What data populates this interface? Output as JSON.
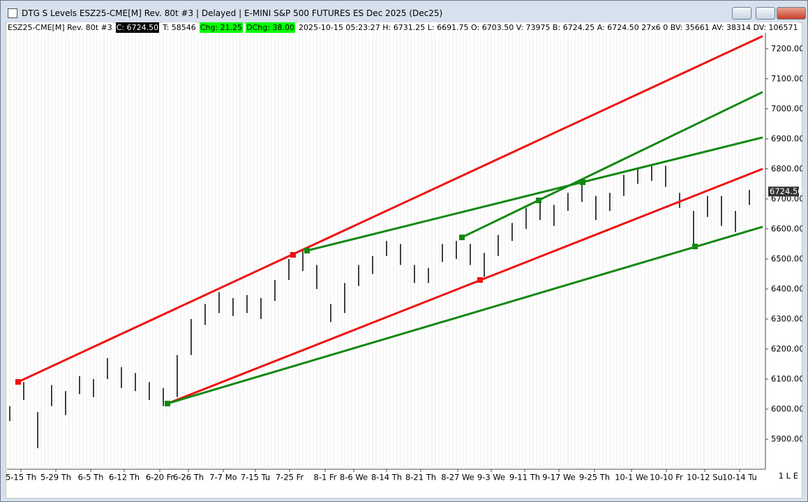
{
  "window": {
    "title": "DTG S Levels ESZ25-CME[M]  Rev. 80t #3 | Delayed | E-MINI S&P 500 FUTURES ES Dec 2025 (Dec25)"
  },
  "info_bar": {
    "items": [
      {
        "text": "ESZ25-CME[M]  Rev. 80t #3",
        "bg": "#ffffff",
        "color": "#000000"
      },
      {
        "text": "C: 6724.50",
        "bg": "#000000",
        "color": "#ffffff"
      },
      {
        "text": "T: 58546",
        "bg": "#ffffff",
        "color": "#000000"
      },
      {
        "text": "Chg: 21.25",
        "bg": "#00ff00",
        "color": "#000000"
      },
      {
        "text": "DChg: 38.00",
        "bg": "#00ff00",
        "color": "#000000"
      },
      {
        "text": "2025-10-15 05:23:27 H: 6731.25 L: 6691.75 O: 6703.50 V: 73975 B: 6724.25 A: 6724.50 27x6 0 BV: 35661 AV: 38314 DV: 106571",
        "bg": "#ffffff",
        "color": "#000000"
      }
    ]
  },
  "status": "1 L E",
  "chart_data": {
    "type": "range-bar",
    "categories": [
      "5-15 Th",
      "5-29 Th",
      "6-5 Th",
      "6-12 Th",
      "6-20 Fr",
      "6-26 Th",
      "7-7 Mo",
      "7-15 Tu",
      "7-25 Fr",
      "8-1 Fr",
      "8-6 We",
      "8-14 Th",
      "8-21 Th",
      "8-27 We",
      "9-3 We",
      "9-11 Th",
      "9-17 We",
      "9-25 Th",
      "10-1 We",
      "10-10 Fr",
      "10-12 Su",
      "10-14 Tu"
    ],
    "high": [
      6010,
      6090,
      5990,
      6080,
      6060,
      6110,
      6100,
      6170,
      6140,
      6120,
      6090,
      6070,
      6180,
      6300,
      6350,
      6390,
      6370,
      6380,
      6370,
      6430,
      6500,
      6530,
      6480,
      6350,
      6420,
      6480,
      6510,
      6560,
      6550,
      6480,
      6470,
      6550,
      6560,
      6550,
      6520,
      6580,
      6620,
      6670,
      6700,
      6680,
      6720,
      6760,
      6710,
      6720,
      6780,
      6800,
      6810,
      6810,
      6720,
      6660,
      6710,
      6710,
      6660,
      6730
    ],
    "low": [
      5960,
      6030,
      5870,
      6010,
      5980,
      6050,
      6040,
      6100,
      6070,
      6060,
      6030,
      6010,
      6040,
      6180,
      6280,
      6320,
      6310,
      6320,
      6300,
      6360,
      6430,
      6460,
      6400,
      6290,
      6320,
      6410,
      6450,
      6510,
      6480,
      6420,
      6420,
      6490,
      6500,
      6480,
      6440,
      6510,
      6560,
      6600,
      6630,
      6610,
      6660,
      6690,
      6630,
      6660,
      6710,
      6750,
      6760,
      6740,
      6670,
      6540,
      6640,
      6610,
      6590,
      6680
    ],
    "color": "#000000",
    "lines": [
      {
        "color": "#ee1111",
        "values": [
          6090.7,
          7241.9
        ]
      },
      {
        "color": "#ee1111",
        "values": [
          6018.6,
          6800
        ]
      },
      {
        "color": "#118811",
        "values": [
          6018.6,
          6607
        ]
      },
      {
        "color": "#118811",
        "values": [
          6527.9,
          6904.7
        ]
      },
      {
        "color": "#118811",
        "values": [
          6572,
          7055.8
        ]
      }
    ],
    "ylim": [
      5800,
      7253
    ],
    "yticks": [
      {
        "value": 5900,
        "label": "5900.00"
      },
      {
        "value": 6000,
        "label": "6000.00"
      },
      {
        "value": 6100,
        "label": "6100.00"
      },
      {
        "value": 6200,
        "label": "6200.00"
      },
      {
        "value": 6300,
        "label": "6300.00"
      },
      {
        "value": 6400,
        "label": "6400.00"
      },
      {
        "value": 6500,
        "label": "6500.00"
      },
      {
        "value": 6600,
        "label": "6600.00"
      },
      {
        "value": 6700,
        "label": "6700.00"
      },
      {
        "value": 6800,
        "label": "6800.00"
      },
      {
        "value": 6900,
        "label": "6900.00"
      },
      {
        "value": 7000,
        "label": "7000.00"
      },
      {
        "value": 7100,
        "label": "7100.00"
      },
      {
        "value": 7200,
        "label": "7200.00"
      }
    ],
    "last": {
      "value": 6724.5,
      "label": "6724.50"
    }
  }
}
